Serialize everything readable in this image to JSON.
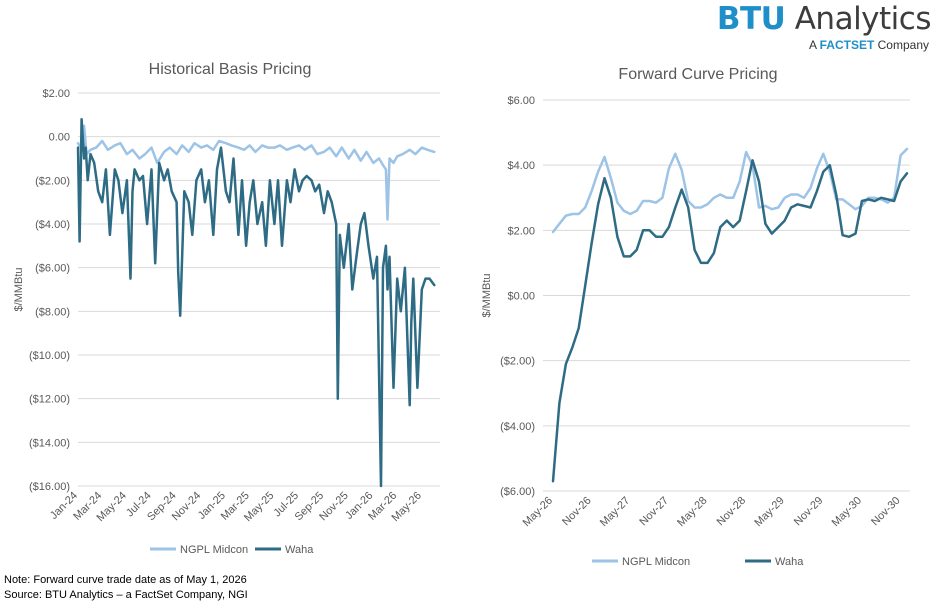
{
  "logo": {
    "brand_part1": "BTU",
    "brand_part2": " Analytics",
    "sub_prefix": "A ",
    "sub_brand": "FACTSET",
    "sub_suffix": " Company"
  },
  "notes": {
    "line1": "Note: Forward curve trade date as of May 1, 2026",
    "line2": "Source: BTU Analytics – a FactSet Company, NGI"
  },
  "colors": {
    "ngpl_midcon": "#9dc3e6",
    "waha": "#2e6b85",
    "gridline": "#d9d9d9",
    "axis_text": "#595959"
  },
  "chart_data": [
    {
      "type": "line",
      "title": "Historical Basis Pricing",
      "ylabel": "$/MMBtu",
      "xlabel": "",
      "ylim": [
        -16,
        2
      ],
      "yticks": [
        2,
        0,
        -2,
        -4,
        -6,
        -8,
        -10,
        -12,
        -14,
        -16
      ],
      "ytick_labels": [
        "$2.00",
        "0.00",
        "($2.00)",
        "($4.00)",
        "($6.00)",
        "($8.00)",
        "($10.00)",
        "($12.00)",
        "($14.00)",
        "($16.00)"
      ],
      "x_range": [
        "2024-01-01",
        "2026-06-15"
      ],
      "x_tick_labels": [
        "Jan-24",
        "Mar-24",
        "May-24",
        "Jul-24",
        "Sep-24",
        "Nov-24",
        "Jan-25",
        "Mar-25",
        "May-25",
        "Jul-25",
        "Sep-25",
        "Nov-25",
        "Jan-26",
        "Mar-26",
        "May-26"
      ],
      "grid": "horizontal",
      "legend_position": "bottom",
      "series": [
        {
          "name": "NGPL Midcon",
          "x": [
            "2024-01-01",
            "2024-01-08",
            "2024-01-16",
            "2024-01-22",
            "2024-02-01",
            "2024-02-15",
            "2024-03-01",
            "2024-03-15",
            "2024-04-01",
            "2024-04-15",
            "2024-05-01",
            "2024-05-15",
            "2024-06-01",
            "2024-06-15",
            "2024-07-01",
            "2024-07-15",
            "2024-08-01",
            "2024-08-15",
            "2024-09-01",
            "2024-09-15",
            "2024-10-01",
            "2024-10-15",
            "2024-11-01",
            "2024-11-15",
            "2024-12-01",
            "2024-12-15",
            "2025-01-01",
            "2025-01-15",
            "2025-02-01",
            "2025-02-15",
            "2025-03-01",
            "2025-03-15",
            "2025-04-01",
            "2025-04-15",
            "2025-05-01",
            "2025-05-15",
            "2025-06-01",
            "2025-06-15",
            "2025-07-01",
            "2025-07-15",
            "2025-08-01",
            "2025-08-15",
            "2025-09-01",
            "2025-09-15",
            "2025-10-01",
            "2025-10-15",
            "2025-11-01",
            "2025-11-15",
            "2025-12-01",
            "2025-12-15",
            "2026-01-01",
            "2026-01-15",
            "2026-01-25",
            "2026-02-01",
            "2026-02-05",
            "2026-02-10",
            "2026-02-20",
            "2026-03-01",
            "2026-03-15",
            "2026-04-01",
            "2026-04-15",
            "2026-05-01",
            "2026-05-15",
            "2026-06-01"
          ],
          "values": [
            -0.3,
            -0.5,
            0.5,
            -0.8,
            -0.6,
            -0.5,
            -0.2,
            -0.6,
            -0.4,
            -0.3,
            -0.8,
            -0.6,
            -1.0,
            -0.8,
            -0.5,
            -1.2,
            -0.7,
            -0.5,
            -0.8,
            -0.4,
            -0.7,
            -0.3,
            -0.5,
            -0.4,
            -0.6,
            -0.2,
            -0.3,
            -0.4,
            -0.5,
            -0.6,
            -0.4,
            -0.7,
            -0.4,
            -0.5,
            -0.5,
            -0.4,
            -0.6,
            -0.5,
            -0.4,
            -0.6,
            -0.4,
            -0.8,
            -0.7,
            -0.5,
            -0.9,
            -0.5,
            -1.0,
            -0.6,
            -1.1,
            -0.7,
            -1.2,
            -1.0,
            -1.3,
            -1.5,
            -3.8,
            -1.0,
            -1.2,
            -0.9,
            -0.8,
            -0.6,
            -0.8,
            -0.5,
            -0.6,
            -0.7
          ]
        },
        {
          "name": "Waha",
          "x": [
            "2024-01-01",
            "2024-01-05",
            "2024-01-10",
            "2024-01-16",
            "2024-01-20",
            "2024-01-25",
            "2024-02-01",
            "2024-02-10",
            "2024-02-20",
            "2024-03-01",
            "2024-03-10",
            "2024-03-20",
            "2024-04-01",
            "2024-04-10",
            "2024-04-20",
            "2024-05-01",
            "2024-05-10",
            "2024-05-15",
            "2024-05-20",
            "2024-06-01",
            "2024-06-10",
            "2024-06-20",
            "2024-07-01",
            "2024-07-10",
            "2024-07-20",
            "2024-08-01",
            "2024-08-10",
            "2024-08-20",
            "2024-09-01",
            "2024-09-05",
            "2024-09-10",
            "2024-09-20",
            "2024-10-01",
            "2024-10-10",
            "2024-10-20",
            "2024-11-01",
            "2024-11-10",
            "2024-11-20",
            "2024-12-01",
            "2024-12-10",
            "2024-12-20",
            "2025-01-01",
            "2025-01-10",
            "2025-01-20",
            "2025-02-01",
            "2025-02-10",
            "2025-02-20",
            "2025-03-01",
            "2025-03-10",
            "2025-03-20",
            "2025-04-01",
            "2025-04-10",
            "2025-04-20",
            "2025-05-01",
            "2025-05-10",
            "2025-05-20",
            "2025-06-01",
            "2025-06-10",
            "2025-06-20",
            "2025-07-01",
            "2025-07-10",
            "2025-07-20",
            "2025-08-01",
            "2025-08-10",
            "2025-08-20",
            "2025-09-01",
            "2025-09-10",
            "2025-09-20",
            "2025-10-01",
            "2025-10-05",
            "2025-10-10",
            "2025-10-20",
            "2025-11-01",
            "2025-11-10",
            "2025-11-20",
            "2025-12-01",
            "2025-12-10",
            "2025-12-20",
            "2026-01-01",
            "2026-01-10",
            "2026-01-20",
            "2026-01-25",
            "2026-02-01",
            "2026-02-05",
            "2026-02-10",
            "2026-02-20",
            "2026-03-01",
            "2026-03-10",
            "2026-03-20",
            "2026-04-01",
            "2026-04-05",
            "2026-04-10",
            "2026-04-20",
            "2026-05-01",
            "2026-05-10",
            "2026-05-20",
            "2026-06-01"
          ],
          "values": [
            -0.5,
            -4.8,
            0.8,
            -1.0,
            -0.5,
            -2.0,
            -0.8,
            -1.2,
            -2.5,
            -3.0,
            -1.5,
            -4.5,
            -1.5,
            -2.0,
            -3.5,
            -2.0,
            -6.5,
            -2.5,
            -1.5,
            -2.0,
            -1.8,
            -4.0,
            -1.5,
            -5.8,
            -1.2,
            -2.0,
            -1.5,
            -2.5,
            -3.0,
            -6.2,
            -8.2,
            -2.5,
            -3.0,
            -4.5,
            -2.0,
            -1.5,
            -3.0,
            -2.0,
            -4.5,
            -1.5,
            -0.5,
            -2.5,
            -3.0,
            -1.0,
            -4.5,
            -2.0,
            -5.0,
            -3.0,
            -2.0,
            -4.0,
            -3.0,
            -5.0,
            -2.0,
            -4.0,
            -2.0,
            -5.0,
            -2.0,
            -3.0,
            -1.5,
            -2.5,
            -2.0,
            -1.8,
            -2.0,
            -2.5,
            -2.2,
            -3.5,
            -2.5,
            -3.0,
            -4.0,
            -12.0,
            -4.5,
            -6.0,
            -4.0,
            -7.0,
            -5.5,
            -4.0,
            -3.5,
            -5.0,
            -6.5,
            -5.5,
            -16.0,
            -6.0,
            -5.0,
            -7.0,
            -5.5,
            -11.5,
            -6.5,
            -8.0,
            -6.0,
            -12.3,
            -8.5,
            -6.5,
            -11.5,
            -7.0,
            -6.5,
            -6.5,
            -6.8
          ]
        }
      ]
    },
    {
      "type": "line",
      "title": "Forward Curve Pricing",
      "ylabel": "$/MMBtu",
      "xlabel": "",
      "ylim": [
        -6,
        6
      ],
      "yticks": [
        6,
        4,
        2,
        0,
        -2,
        -4,
        -6
      ],
      "ytick_labels": [
        "$6.00",
        "$4.00",
        "$2.00",
        "$0.00",
        "($2.00)",
        "($4.00)",
        "($6.00)"
      ],
      "x": [
        "May-26",
        "Jun-26",
        "Jul-26",
        "Aug-26",
        "Sep-26",
        "Oct-26",
        "Nov-26",
        "Dec-26",
        "Jan-27",
        "Feb-27",
        "Mar-27",
        "Apr-27",
        "May-27",
        "Jun-27",
        "Jul-27",
        "Aug-27",
        "Sep-27",
        "Oct-27",
        "Nov-27",
        "Dec-27",
        "Jan-28",
        "Feb-28",
        "Mar-28",
        "Apr-28",
        "May-28",
        "Jun-28",
        "Jul-28",
        "Aug-28",
        "Sep-28",
        "Oct-28",
        "Nov-28",
        "Dec-28",
        "Jan-29",
        "Feb-29",
        "Mar-29",
        "Apr-29",
        "May-29",
        "Jun-29",
        "Jul-29",
        "Aug-29",
        "Sep-29",
        "Oct-29",
        "Nov-29",
        "Dec-29",
        "Jan-30",
        "Feb-30",
        "Mar-30",
        "Apr-30",
        "May-30",
        "Jun-30",
        "Jul-30",
        "Aug-30",
        "Sep-30",
        "Oct-30",
        "Nov-30",
        "Dec-30"
      ],
      "x_tick_labels": [
        "May-26",
        "Nov-26",
        "May-27",
        "Nov-27",
        "May-28",
        "Nov-28",
        "May-29",
        "Nov-29",
        "May-30",
        "Nov-30"
      ],
      "grid": "horizontal",
      "legend_position": "bottom",
      "series": [
        {
          "name": "NGPL Midcon",
          "values": [
            1.95,
            2.2,
            2.45,
            2.5,
            2.5,
            2.7,
            3.2,
            3.8,
            4.25,
            3.6,
            2.85,
            2.6,
            2.5,
            2.6,
            2.9,
            2.9,
            2.85,
            3.0,
            3.9,
            4.35,
            3.85,
            2.9,
            2.7,
            2.7,
            2.8,
            3.0,
            3.1,
            3.0,
            3.0,
            3.5,
            4.4,
            4.0,
            2.7,
            2.75,
            2.65,
            2.7,
            3.0,
            3.1,
            3.1,
            3.0,
            3.3,
            3.9,
            4.35,
            3.8,
            2.95,
            2.95,
            2.8,
            2.65,
            2.75,
            3.0,
            3.0,
            2.95,
            2.85,
            3.0,
            4.3,
            4.5
          ]
        },
        {
          "name": "Waha",
          "values": [
            -5.7,
            -3.3,
            -2.1,
            -1.6,
            -1.0,
            0.3,
            1.6,
            2.8,
            3.6,
            3.0,
            1.8,
            1.2,
            1.2,
            1.4,
            2.0,
            2.0,
            1.8,
            1.8,
            2.1,
            2.7,
            3.25,
            2.7,
            1.4,
            1.0,
            1.0,
            1.3,
            2.1,
            2.3,
            2.1,
            2.3,
            3.2,
            4.15,
            3.5,
            2.2,
            1.9,
            2.1,
            2.3,
            2.7,
            2.8,
            2.75,
            2.7,
            3.2,
            3.8,
            4.0,
            3.1,
            1.85,
            1.8,
            1.9,
            2.9,
            2.95,
            2.9,
            3.0,
            2.95,
            2.9,
            3.5,
            3.75
          ]
        }
      ]
    }
  ]
}
